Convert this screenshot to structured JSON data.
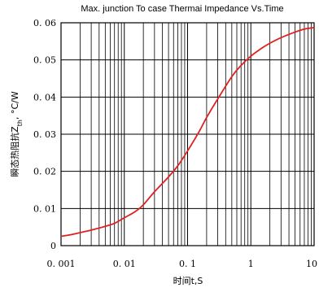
{
  "chart_data": {
    "type": "line",
    "title": "Max. junction To case Thermai Impedance Vs.Time",
    "xlabel": "时间t,S",
    "ylabel": "瞬态热阻抗Z",
    "ylabel_sub": "th",
    "ylabel_unit": ", °C/W",
    "x_scale": "log",
    "xlim": [
      0.001,
      10
    ],
    "ylim": [
      0,
      0.06
    ],
    "x_ticks": [
      0.001,
      0.01,
      0.1,
      1,
      10
    ],
    "x_tick_labels": [
      "0. 001",
      "0. 01",
      "0. 1",
      "1",
      "10"
    ],
    "y_ticks": [
      0,
      0.01,
      0.02,
      0.03,
      0.04,
      0.05,
      0.06
    ],
    "y_tick_labels": [
      "0",
      "0. 01",
      "0. 02",
      "0. 03",
      "0. 04",
      "0. 05",
      "0. 06"
    ],
    "grid": true,
    "series": [
      {
        "color": "#e02020",
        "x": [
          0.001,
          0.0015,
          0.002,
          0.003,
          0.005,
          0.007,
          0.01,
          0.015,
          0.02,
          0.03,
          0.05,
          0.07,
          0.1,
          0.15,
          0.2,
          0.3,
          0.5,
          0.7,
          1,
          1.5,
          2,
          3,
          5,
          7,
          10
        ],
        "y": [
          0.0025,
          0.003,
          0.0035,
          0.0042,
          0.0052,
          0.006,
          0.0075,
          0.0092,
          0.011,
          0.0145,
          0.0185,
          0.0215,
          0.0255,
          0.0305,
          0.0345,
          0.0395,
          0.0455,
          0.0485,
          0.051,
          0.0532,
          0.0545,
          0.056,
          0.0575,
          0.0583,
          0.0587
        ]
      }
    ]
  }
}
